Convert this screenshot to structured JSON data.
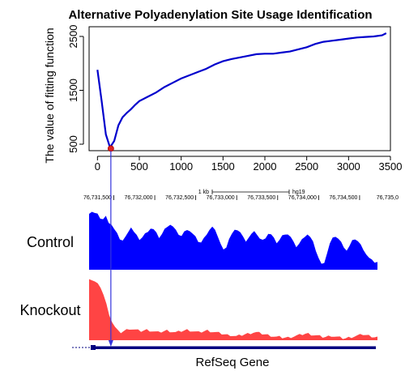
{
  "chart_data": {
    "type": "line",
    "title": "Alternative Polyadenylation Site Usage Identification",
    "xlabel": "",
    "ylabel": "The value of fitting function",
    "xlim": [
      -100,
      3500
    ],
    "ylim": [
      380,
      2680
    ],
    "x_ticks": [
      0,
      500,
      1000,
      1500,
      2000,
      2500,
      3000,
      3500
    ],
    "y_ticks": [
      500,
      1500,
      2500
    ],
    "x": [
      0,
      50,
      100,
      150,
      200,
      250,
      300,
      350,
      400,
      450,
      500,
      600,
      700,
      800,
      900,
      1000,
      1100,
      1200,
      1300,
      1400,
      1500,
      1600,
      1700,
      1800,
      1900,
      2000,
      2100,
      2200,
      2300,
      2400,
      2500,
      2600,
      2700,
      2800,
      2900,
      3000,
      3100,
      3200,
      3300,
      3400,
      3450
    ],
    "y": [
      1880,
      1300,
      680,
      440,
      560,
      850,
      1000,
      1080,
      1150,
      1230,
      1300,
      1380,
      1460,
      1560,
      1640,
      1720,
      1780,
      1840,
      1900,
      1980,
      2040,
      2080,
      2110,
      2140,
      2170,
      2180,
      2180,
      2200,
      2220,
      2260,
      2300,
      2360,
      2400,
      2420,
      2440,
      2460,
      2480,
      2490,
      2500,
      2520,
      2560
    ],
    "minimum": {
      "x": 160,
      "y": 420
    },
    "line_color": "#0000cc",
    "marker_color": "#dd2222"
  },
  "genome": {
    "coordinates": [
      "76,731,500",
      "76,732,000",
      "76,732,500",
      "76,733,000",
      "76,733,500",
      "76,734,000",
      "76,734,500",
      "76,735,0"
    ],
    "scale_label": "1 kb",
    "assembly": "hg19"
  },
  "tracks": {
    "control_label": "Control",
    "knockout_label": "Knockout",
    "control_color": "#0000ff",
    "knockout_color": "#ff4444",
    "control_profile": [
      0.88,
      0.9,
      0.87,
      0.85,
      0.8,
      0.78,
      0.82,
      0.74,
      0.7,
      0.62,
      0.55,
      0.48,
      0.45,
      0.5,
      0.6,
      0.66,
      0.58,
      0.52,
      0.47,
      0.5,
      0.55,
      0.6,
      0.64,
      0.62,
      0.56,
      0.5,
      0.55,
      0.62,
      0.68,
      0.7,
      0.66,
      0.6,
      0.55,
      0.52,
      0.58,
      0.63,
      0.6,
      0.55,
      0.5,
      0.44,
      0.42,
      0.48,
      0.56,
      0.62,
      0.66,
      0.6,
      0.52,
      0.4,
      0.3,
      0.36,
      0.48,
      0.55,
      0.6,
      0.62,
      0.58,
      0.5,
      0.45,
      0.5,
      0.55,
      0.58,
      0.55,
      0.48,
      0.45,
      0.5,
      0.56,
      0.54,
      0.48,
      0.42,
      0.46,
      0.52,
      0.56,
      0.55,
      0.5,
      0.42,
      0.36,
      0.4,
      0.46,
      0.52,
      0.55,
      0.5,
      0.42,
      0.3,
      0.18,
      0.08,
      0.12,
      0.26,
      0.4,
      0.48,
      0.52,
      0.48,
      0.42,
      0.36,
      0.3,
      0.36,
      0.44,
      0.48,
      0.44,
      0.38,
      0.32,
      0.24,
      0.18,
      0.14,
      0.12,
      0.12
    ],
    "knockout_profile": [
      0.96,
      0.93,
      0.9,
      0.86,
      0.82,
      0.7,
      0.55,
      0.4,
      0.28,
      0.2,
      0.14,
      0.12,
      0.14,
      0.16,
      0.18,
      0.17,
      0.16,
      0.15,
      0.14,
      0.15,
      0.16,
      0.15,
      0.14,
      0.13,
      0.12,
      0.13,
      0.14,
      0.15,
      0.14,
      0.13,
      0.12,
      0.13,
      0.14,
      0.15,
      0.16,
      0.15,
      0.14,
      0.13,
      0.12,
      0.13,
      0.14,
      0.15,
      0.14,
      0.13,
      0.12,
      0.11,
      0.1,
      0.09,
      0.08,
      0.08,
      0.07,
      0.06,
      0.07,
      0.08,
      0.09,
      0.1,
      0.11,
      0.12,
      0.12,
      0.11,
      0.1,
      0.09,
      0.08,
      0.07,
      0.06,
      0.05,
      0.05,
      0.04,
      0.04,
      0.04,
      0.05,
      0.06,
      0.07,
      0.08,
      0.09,
      0.1,
      0.1,
      0.09,
      0.08,
      0.07,
      0.06,
      0.05,
      0.05,
      0.06,
      0.07,
      0.06,
      0.05,
      0.04,
      0.03,
      0.03,
      0.04,
      0.05,
      0.06,
      0.07,
      0.08,
      0.09,
      0.08,
      0.07,
      0.06,
      0.05,
      0.05
    ]
  },
  "gene": {
    "label": "RefSeq Gene",
    "color": "#000080"
  }
}
